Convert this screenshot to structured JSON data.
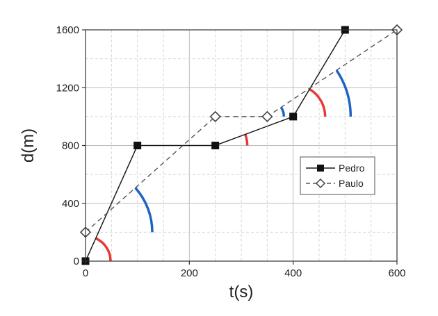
{
  "chart_data": {
    "type": "line",
    "xlabel": "t(s)",
    "ylabel": "d(m)",
    "xlim": [
      0,
      600
    ],
    "ylim": [
      0,
      1600
    ],
    "xticks": [
      0,
      200,
      400,
      600
    ],
    "yticks": [
      0,
      400,
      800,
      1200,
      1600
    ],
    "grid": "dashed",
    "legend_position": "right-middle",
    "series": [
      {
        "name": "Pedro",
        "style": "solid",
        "marker": "filled-square",
        "color": "#1a1a1a",
        "x": [
          0,
          100,
          250,
          400,
          500
        ],
        "y": [
          0,
          800,
          800,
          1000,
          1600
        ]
      },
      {
        "name": "Paulo",
        "style": "dashed",
        "marker": "open-diamond",
        "color": "#555555",
        "x": [
          0,
          250,
          350,
          600
        ],
        "y": [
          200,
          1000,
          1000,
          1600
        ]
      }
    ],
    "annotations": [
      {
        "type": "angle-arc",
        "color": "#e53935",
        "at": [
          0,
          0
        ],
        "between": [
          "x-axis",
          "Pedro"
        ]
      },
      {
        "type": "angle-arc",
        "color": "#1e63c4",
        "at": [
          0,
          200
        ],
        "between": [
          "x-axis",
          "Paulo"
        ]
      },
      {
        "type": "angle-arc",
        "color": "#e53935",
        "at": [
          250,
          800
        ],
        "between": [
          "x-axis",
          "Pedro"
        ]
      },
      {
        "type": "angle-arc",
        "color": "#1e63c4",
        "at": [
          350,
          1000
        ],
        "between": [
          "x-axis",
          "Paulo"
        ]
      },
      {
        "type": "angle-arc",
        "color": "#e53935",
        "at": [
          400,
          1000
        ],
        "between": [
          "x-axis",
          "Pedro"
        ]
      },
      {
        "type": "angle-arc",
        "color": "#1e63c4",
        "at": [
          350,
          1000
        ],
        "between": [
          "x-axis",
          "Paulo"
        ]
      }
    ]
  }
}
